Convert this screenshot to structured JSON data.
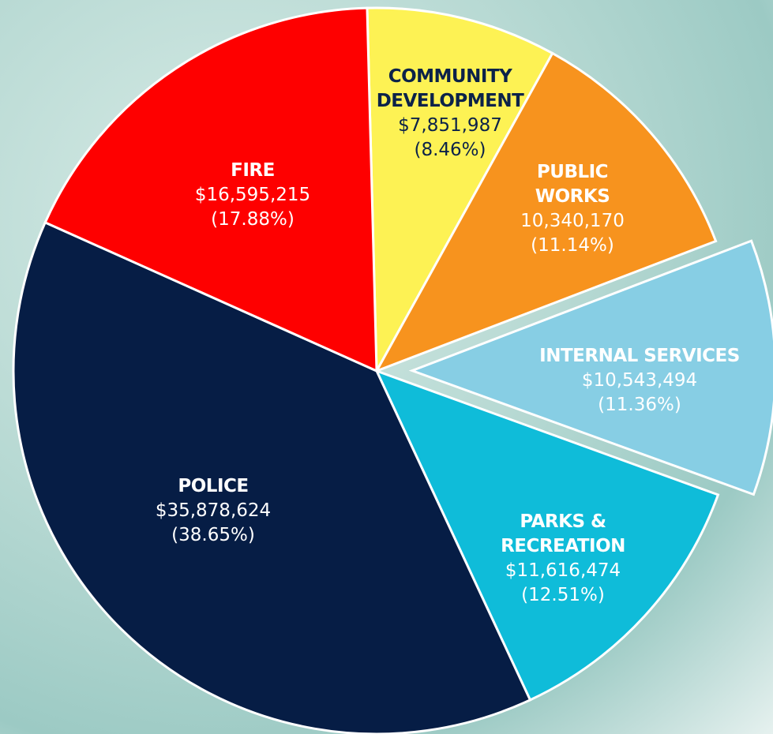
{
  "chart_data": {
    "type": "pie",
    "categories": [
      "COMMUNITY DEVELOPMENT",
      "PUBLIC WORKS",
      "INTERNAL SERVICES",
      "PARKS & RECREATION",
      "POLICE",
      "FIRE"
    ],
    "values": [
      7851987,
      10340170,
      10543494,
      11616474,
      35878624,
      16595215
    ],
    "value_labels": [
      "$7,851,987",
      "10,340,170",
      "$10,543,494",
      "$11,616,474",
      "$35,878,624",
      "$16,595,215"
    ],
    "percents": [
      8.46,
      11.14,
      11.36,
      12.51,
      38.65,
      17.88
    ],
    "percent_labels": [
      "(8.46%)",
      "(11.14%)",
      "(11.36%)",
      "(12.51%)",
      "(38.65%)",
      "(17.88%)"
    ],
    "colors": [
      "#fdf254",
      "#f7931e",
      "#87cee4",
      "#0fbcd9",
      "#061d45",
      "#fe0000"
    ],
    "exploded": [
      false,
      false,
      true,
      false,
      false,
      false
    ]
  }
}
